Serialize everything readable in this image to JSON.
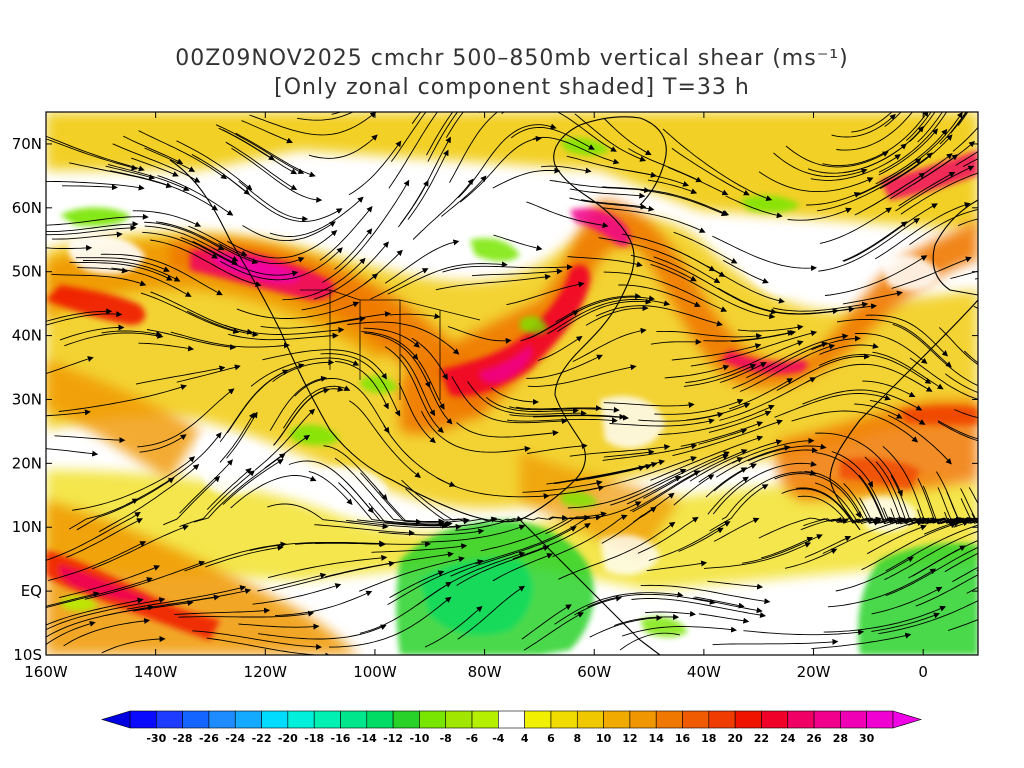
{
  "title": {
    "line1": "00Z09NOV2025 cmchr 500–850mb vertical shear (ms⁻¹)",
    "line2": "[Only zonal component shaded] T=33 h"
  },
  "axes": {
    "lat_labels": [
      "70N",
      "60N",
      "50N",
      "40N",
      "30N",
      "20N",
      "10N",
      "EQ",
      "10S"
    ],
    "lon_labels": [
      "160W",
      "140W",
      "120W",
      "100W",
      "80W",
      "60W",
      "40W",
      "20W",
      "0"
    ],
    "lat_range": [
      -10,
      75
    ],
    "lon_range": [
      -160,
      10
    ]
  },
  "colorbar": {
    "labels": [
      "-30",
      "-28",
      "-26",
      "-24",
      "-22",
      "-20",
      "-18",
      "-16",
      "-14",
      "-12",
      "-10",
      "-8",
      "-6",
      "-4",
      "4",
      "6",
      "8",
      "10",
      "12",
      "14",
      "16",
      "18",
      "20",
      "22",
      "24",
      "26",
      "28",
      "30"
    ],
    "colors": [
      "#0a0aff",
      "#1e3cff",
      "#1464ff",
      "#1e8cff",
      "#14aaff",
      "#00dcff",
      "#00f0dc",
      "#00f0b4",
      "#00e68c",
      "#00dc64",
      "#28d228",
      "#78e600",
      "#a0e600",
      "#b4f000",
      "#ffffff",
      "#f0f000",
      "#f0dc00",
      "#f0c800",
      "#f0aa00",
      "#f09600",
      "#f07800",
      "#f05a00",
      "#f03c00",
      "#f01400",
      "#f00028",
      "#f00064",
      "#f0008c",
      "#f000b4",
      "#f000d2"
    ],
    "extend": "both"
  },
  "colors": {
    "streamline": "#000000",
    "coastline": "#000000",
    "frame": "#000000"
  }
}
